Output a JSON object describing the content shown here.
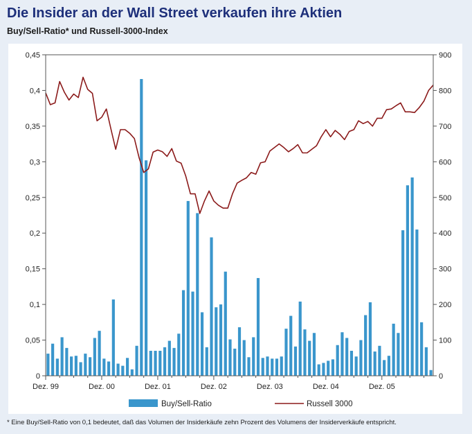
{
  "title": "Die Insider an der Wall Street verkaufen ihre Aktien",
  "subtitle": "Buy/Sell-Ratio* und Russell-3000-Index",
  "footnote": "* Eine Buy/Sell-Ratio von 0,1 bedeutet, daß das Volumen der Insiderkäufe zehn Prozent des Volumens der Insiderverkäufe entspricht.",
  "colors": {
    "bar": "#3a96cc",
    "line": "#8b1a1a",
    "background": "#e8eef6",
    "title": "#1d2f7a"
  },
  "chart_data": {
    "type": "bar+line",
    "x_tick_labels": [
      "Dez. 99",
      "Dez. 00",
      "Dez. 01",
      "Dez. 02",
      "Dez. 03",
      "Dez. 04",
      "Dez. 05"
    ],
    "left_axis": {
      "ylim": [
        0,
        0.45
      ],
      "ticks": [
        "0",
        "0,05",
        "0,1",
        "0,15",
        "0,2",
        "0,25",
        "0,3",
        "0,35",
        "0,4",
        "0,45"
      ]
    },
    "right_axis": {
      "ylim": [
        0,
        900
      ],
      "ticks": [
        "0",
        "100",
        "200",
        "300",
        "400",
        "500",
        "600",
        "700",
        "800",
        "900"
      ]
    },
    "x_start": "Dez. 99",
    "step": "monthly",
    "legend": [
      "Buy/Sell-Ratio",
      "Russell 3000"
    ],
    "series": [
      {
        "name": "Buy/Sell-Ratio",
        "type": "bar",
        "axis": "left",
        "values": [
          0.031,
          0.045,
          0.024,
          0.054,
          0.039,
          0.027,
          0.028,
          0.019,
          0.031,
          0.026,
          0.053,
          0.063,
          0.024,
          0.02,
          0.107,
          0.017,
          0.014,
          0.025,
          0.009,
          0.042,
          0.416,
          0.302,
          0.035,
          0.035,
          0.035,
          0.04,
          0.049,
          0.039,
          0.059,
          0.12,
          0.245,
          0.118,
          0.228,
          0.089,
          0.04,
          0.194,
          0.096,
          0.1,
          0.146,
          0.051,
          0.038,
          0.068,
          0.05,
          0.026,
          0.054,
          0.137,
          0.025,
          0.027,
          0.024,
          0.024,
          0.027,
          0.066,
          0.084,
          0.041,
          0.104,
          0.065,
          0.049,
          0.06,
          0.016,
          0.018,
          0.021,
          0.023,
          0.043,
          0.061,
          0.053,
          0.035,
          0.027,
          0.05,
          0.085,
          0.103,
          0.034,
          0.042,
          0.022,
          0.028,
          0.073,
          0.06,
          0.204,
          0.267,
          0.278,
          0.205,
          0.075,
          0.04,
          0.008
        ]
      },
      {
        "name": "Russell 3000",
        "type": "line",
        "axis": "right",
        "values": [
          793,
          760,
          765,
          825,
          795,
          773,
          790,
          780,
          837,
          803,
          792,
          715,
          725,
          748,
          690,
          635,
          690,
          690,
          680,
          665,
          612,
          570,
          580,
          627,
          633,
          628,
          615,
          637,
          602,
          596,
          560,
          510,
          510,
          455,
          490,
          518,
          490,
          478,
          470,
          470,
          510,
          540,
          548,
          555,
          570,
          565,
          597,
          600,
          630,
          640,
          650,
          640,
          628,
          637,
          648,
          625,
          625,
          635,
          645,
          670,
          690,
          670,
          688,
          677,
          662,
          685,
          690,
          715,
          707,
          713,
          700,
          722,
          722,
          746,
          748,
          757,
          765,
          740,
          740,
          738,
          752,
          770,
          800,
          815
        ]
      }
    ]
  }
}
